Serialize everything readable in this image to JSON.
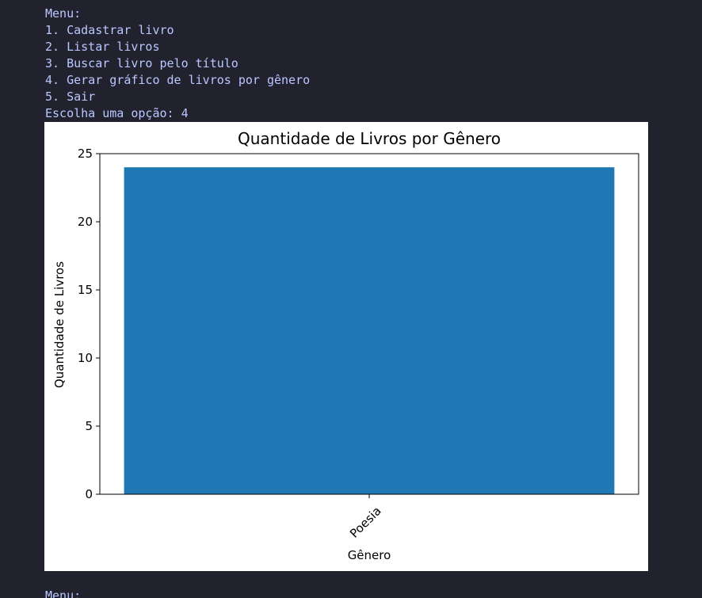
{
  "terminal": {
    "menu_title": "Menu:",
    "options": [
      "1. Cadastrar livro",
      "2. Listar livros",
      "3. Buscar livro pelo título",
      "4. Gerar gráfico de livros por gênero",
      "5. Sair"
    ],
    "prompt": "Escolha uma opção: 4",
    "next_menu_title": "Menu:"
  },
  "colors": {
    "terminal_background": "#22222f",
    "terminal_text": "#b9c8ff",
    "bar_color": "#1f77b4",
    "plot_background": "#ffffff"
  },
  "chart_data": {
    "type": "bar",
    "title": "Quantidade de Livros por Gênero",
    "xlabel": "Gênero",
    "ylabel": "Quantidade de Livros",
    "categories": [
      "Poesia"
    ],
    "values": [
      24
    ],
    "ylim": [
      0,
      25
    ],
    "yticks": [
      "0",
      "5",
      "10",
      "15",
      "20",
      "25"
    ],
    "grid": false,
    "x_tick_rotation": 45
  }
}
